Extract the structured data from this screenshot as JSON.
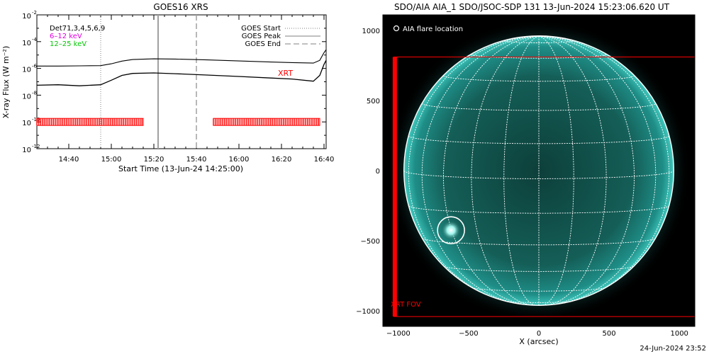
{
  "goes": {
    "title": "GOES16 XRS",
    "ylabel": "X-ray Flux (W m⁻²)",
    "xlabel": "Start Time (13-Jun-24 14:25:00)",
    "det_label": "Det71,3,4,5,6,9",
    "band_low": "6–12 keV",
    "band_high": "12–25 keV",
    "legend": {
      "start": "GOES Start",
      "peak": "GOES Peak",
      "end": "GOES End"
    },
    "xrt_label": "XRT",
    "colors": {
      "band_low": "#e000e0",
      "band_high": "#00c800",
      "xrt": "#ff0000"
    },
    "y_ticks": [
      {
        "exp": -2,
        "label": "10",
        "sup": "-2"
      },
      {
        "exp": -4,
        "label": "10",
        "sup": "-4"
      },
      {
        "exp": -6,
        "label": "10",
        "sup": "-6"
      },
      {
        "exp": -8,
        "label": "10",
        "sup": "-8"
      },
      {
        "exp": -10,
        "label": "10",
        "sup": "-10"
      },
      {
        "exp": -12,
        "label": "10",
        "sup": "-12"
      }
    ],
    "x_ticks": [
      {
        "t": "14:40",
        "label": "14:40"
      },
      {
        "t": "15:00",
        "label": "15:00"
      },
      {
        "t": "15:20",
        "label": "15:20"
      },
      {
        "t": "15:40",
        "label": "15:40"
      },
      {
        "t": "16:00",
        "label": "16:00"
      },
      {
        "t": "16:20",
        "label": "16:20"
      },
      {
        "t": "16:40",
        "label": "16:40"
      }
    ]
  },
  "chart_data": [
    {
      "type": "line",
      "title": "GOES16 XRS",
      "xlabel": "Start Time (13-Jun-24 14:25:00)",
      "ylabel": "X-ray Flux (W m⁻²)",
      "yscale": "log",
      "xlim": [
        "14:25",
        "16:41"
      ],
      "ylim": [
        1e-12,
        0.01
      ],
      "series": [
        {
          "name": "6–12 keV",
          "x": [
            "14:25",
            "14:35",
            "14:45",
            "14:55",
            "15:00",
            "15:05",
            "15:10",
            "15:20",
            "15:30",
            "15:45",
            "16:00",
            "16:15",
            "16:25",
            "16:35",
            "16:38",
            "16:40",
            "16:41"
          ],
          "y": [
            1.5e-06,
            1.5e-06,
            1.55e-06,
            1.6e-06,
            2.2e-06,
            3.5e-06,
            4.6e-06,
            5.2e-06,
            5e-06,
            4.3e-06,
            3.6e-06,
            3e-06,
            2.7e-06,
            2.5e-06,
            4e-06,
            1.5e-05,
            2.5e-05
          ]
        },
        {
          "name": "12–25 keV",
          "x": [
            "14:25",
            "14:35",
            "14:45",
            "14:55",
            "15:00",
            "15:05",
            "15:10",
            "15:20",
            "15:30",
            "15:45",
            "16:00",
            "16:15",
            "16:25",
            "16:35",
            "16:38",
            "16:40",
            "16:41"
          ],
          "y": [
            5.5e-08,
            6e-08,
            5e-08,
            6e-08,
            1.3e-07,
            3e-07,
            4.2e-07,
            4.6e-07,
            4e-07,
            3.2e-07,
            2.5e-07,
            1.9e-07,
            1.6e-07,
            1.1e-07,
            3e-07,
            2e-06,
            4e-06
          ]
        }
      ],
      "markers": {
        "goes_start": "14:55",
        "goes_peak": "15:22",
        "goes_end": "15:40"
      },
      "xrt_coverage": [
        [
          "14:25",
          "15:15"
        ],
        [
          "15:48",
          "16:38"
        ]
      ]
    },
    {
      "type": "scatter",
      "title": "SDO/AIA AIA_1 SDO/JSOC-SDP 131 13-Jun-2024 15:23:06.620 UT",
      "xlabel": "X (arcsec)",
      "ylabel": "",
      "xlim": [
        -1110,
        1110
      ],
      "ylim": [
        -1110,
        1110
      ],
      "solar_radius": 960,
      "x_ticks": [
        -1000,
        -500,
        0,
        500,
        1000
      ],
      "y_ticks": [
        1000,
        500,
        0,
        -500,
        -1000
      ],
      "flare_location": {
        "x": -625,
        "y": -425
      },
      "xrt_fov": {
        "x": [
          -1030,
          1130
        ],
        "y": [
          -1040,
          810
        ]
      }
    }
  ],
  "aia": {
    "title": "SDO/AIA AIA_1 SDO/JSOC-SDP 131 13-Jun-2024 15:23:06.620 UT",
    "xlabel": "X (arcsec)",
    "legend": "AIA flare location",
    "fov_label": "XRT FOV",
    "colors": {
      "fov": "#ff0000",
      "disk": "#19a8a0",
      "grid": "#ffffff"
    }
  },
  "stamp": "24-Jun-2024 23:52"
}
